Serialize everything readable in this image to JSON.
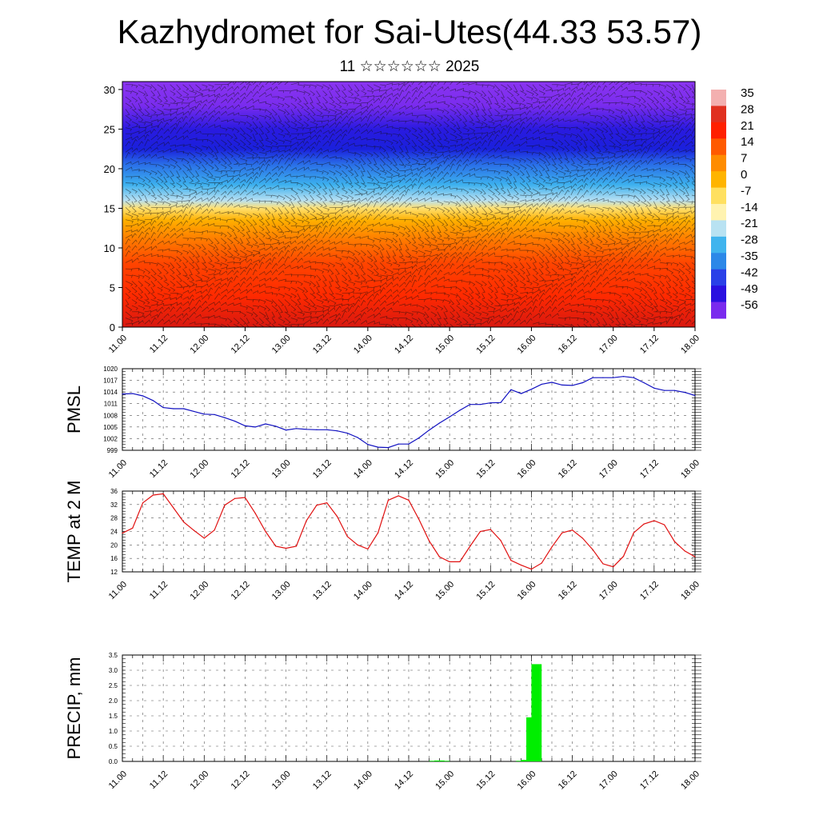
{
  "title": "Kazhydromet for Sai-Utes(44.33 53.57)",
  "subtitle": "11 ☆☆☆☆☆☆ 2025",
  "chart_data": [
    {
      "type": "heatmap",
      "name": "vertical-section",
      "title": "",
      "ylim": [
        0,
        31
      ],
      "y_ticks": [
        "0",
        "5",
        "10",
        "15",
        "20",
        "25",
        "30"
      ],
      "x_ticks": [
        "11.00",
        "11.12",
        "12.00",
        "12.12",
        "13.00",
        "13.12",
        "14.00",
        "14.12",
        "15.00",
        "15.12",
        "16.00",
        "16.12",
        "17.00",
        "17.12",
        "18.00"
      ],
      "overlay": "wind barbs",
      "colorbar": {
        "levels": [
          "35",
          "28",
          "21",
          "14",
          "7",
          "0",
          "-7",
          "-14",
          "-21",
          "-28",
          "-35",
          "-42",
          "-49",
          "-56"
        ],
        "colors": [
          "#f3b0b0",
          "#e03020",
          "#ff2000",
          "#ff5a00",
          "#ff8c00",
          "#ffb400",
          "#ffe060",
          "#fff3b0",
          "#b8e2f2",
          "#40b4ee",
          "#2c88e8",
          "#2a40e8",
          "#2a10e0",
          "#7a2aee"
        ]
      },
      "field_bands": [
        {
          "height": 0,
          "color": "#d81810"
        },
        {
          "height": 4,
          "color": "#ff2a00"
        },
        {
          "height": 8,
          "color": "#ff4400"
        },
        {
          "height": 11,
          "color": "#ff7a00"
        },
        {
          "height": 13.5,
          "color": "#ffb000"
        },
        {
          "height": 15,
          "color": "#ffe070"
        },
        {
          "height": 16,
          "color": "#b8e0f2"
        },
        {
          "height": 18,
          "color": "#3cb0ee"
        },
        {
          "height": 20.5,
          "color": "#2a70e8"
        },
        {
          "height": 22.5,
          "color": "#1a20dc"
        },
        {
          "height": 25,
          "color": "#2a1ae0"
        },
        {
          "height": 28,
          "color": "#7a2cee"
        },
        {
          "height": 31,
          "color": "#8a34f0"
        }
      ]
    },
    {
      "type": "line",
      "name": "pmsl",
      "ylabel": "PMSL",
      "ylim": [
        999,
        1020
      ],
      "y_ticks": [
        "999",
        "1002",
        "1005",
        "1008",
        "1011",
        "1014",
        "1017",
        "1020"
      ],
      "x_ticks": [
        "11.00",
        "11.12",
        "12.00",
        "12.12",
        "13.00",
        "13.12",
        "14.00",
        "14.12",
        "15.00",
        "15.12",
        "16.00",
        "16.12",
        "17.00",
        "17.12",
        "18.00"
      ],
      "color": "#1010c0",
      "x": [
        0,
        1,
        2,
        3,
        4,
        5,
        6,
        7,
        8,
        9,
        10,
        11,
        12,
        13,
        14,
        15,
        16,
        17,
        18,
        19,
        20,
        21,
        22,
        23,
        24,
        25,
        26,
        27,
        28,
        29,
        30,
        31,
        32,
        33,
        34,
        35,
        36,
        37,
        38,
        39,
        40,
        41,
        42,
        43,
        44,
        45,
        46,
        47,
        48,
        49,
        50,
        51,
        52,
        53,
        54,
        55,
        56
      ],
      "values": [
        1013.5,
        1013.6,
        1013,
        1011.8,
        1010,
        1009.7,
        1009.7,
        1009,
        1008.3,
        1008.2,
        1007.4,
        1006.5,
        1005.3,
        1005,
        1005.8,
        1005.2,
        1004.2,
        1004.6,
        1004.4,
        1004.3,
        1004.3,
        1004,
        1003.4,
        1002.3,
        1000.5,
        999.8,
        999.7,
        1000.6,
        1000.6,
        1002.2,
        1004.2,
        1006,
        1007.6,
        1009.3,
        1010.8,
        1010.8,
        1011.2,
        1011.3,
        1014.6,
        1013.6,
        1014.7,
        1016,
        1016.5,
        1015.8,
        1015.7,
        1016.4,
        1017.7,
        1017.7,
        1017.7,
        1018,
        1017.7,
        1016.4,
        1015,
        1014.4,
        1014.4,
        1013.9,
        1013.1
      ]
    },
    {
      "type": "line",
      "name": "temperature",
      "ylabel": "TEMP at 2 M",
      "ylim": [
        12,
        36
      ],
      "y_ticks": [
        "12",
        "16",
        "20",
        "24",
        "28",
        "32",
        "36"
      ],
      "x_ticks": [
        "11.00",
        "11.12",
        "12.00",
        "12.12",
        "13.00",
        "13.12",
        "14.00",
        "14.12",
        "15.00",
        "15.12",
        "16.00",
        "16.12",
        "17.00",
        "17.12",
        "18.00"
      ],
      "color": "#e01010",
      "x": [
        0,
        1,
        2,
        3,
        4,
        5,
        6,
        7,
        8,
        9,
        10,
        11,
        12,
        13,
        14,
        15,
        16,
        17,
        18,
        19,
        20,
        21,
        22,
        23,
        24,
        25,
        26,
        27,
        28,
        29,
        30,
        31,
        32,
        33,
        34,
        35,
        36,
        37,
        38,
        39,
        40,
        41,
        42,
        43,
        44,
        45,
        46,
        47,
        48,
        49,
        50,
        51,
        52,
        53,
        54,
        55,
        56
      ],
      "values": [
        23.5,
        25,
        32.5,
        34.8,
        35.2,
        31,
        26.8,
        24.3,
        22,
        24.4,
        31.8,
        33.8,
        34.1,
        29.4,
        24,
        19.6,
        19,
        19.6,
        27.2,
        31.8,
        32.5,
        28.5,
        22.5,
        20,
        18.8,
        23.6,
        33.3,
        34.6,
        33.3,
        27.6,
        21.2,
        16.5,
        15,
        15,
        19.6,
        24,
        24.6,
        21.3,
        15.4,
        14,
        12.8,
        14.6,
        19.4,
        23.6,
        24.4,
        22,
        18.6,
        14.4,
        13.5,
        16.6,
        23.6,
        26.2,
        27.2,
        26,
        21,
        18.2,
        16.5
      ]
    },
    {
      "type": "bar",
      "name": "precipitation",
      "ylabel": "PRECIP, mm",
      "ylim": [
        0,
        3.5
      ],
      "y_ticks": [
        "0.0",
        "0.5",
        "1.0",
        "1.5",
        "2.0",
        "2.5",
        "3.0",
        "3.5"
      ],
      "x_ticks": [
        "11.00",
        "11.12",
        "12.00",
        "12.12",
        "13.00",
        "13.12",
        "14.00",
        "14.12",
        "15.00",
        "15.12",
        "16.00",
        "16.12",
        "17.00",
        "17.12",
        "18.00"
      ],
      "color": "#00ee00",
      "x": [
        30.5,
        31,
        31.5,
        39,
        39.5,
        40,
        40.5
      ],
      "values": [
        0.02,
        0.03,
        0.02,
        0.02,
        0.05,
        1.45,
        3.2
      ]
    }
  ]
}
